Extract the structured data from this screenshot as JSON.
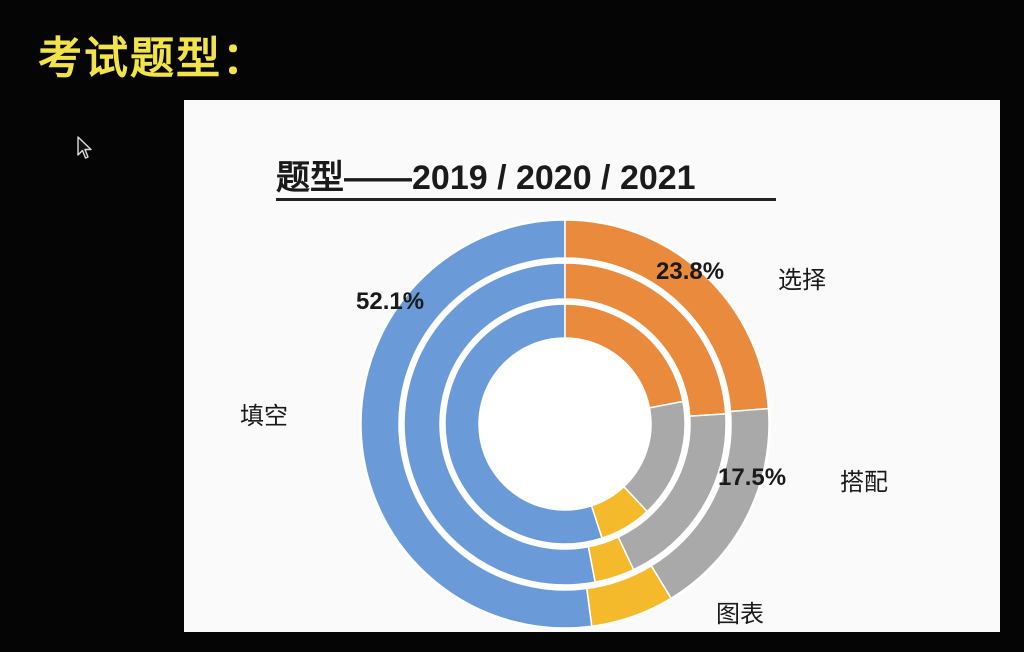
{
  "heading": "考试题型：",
  "chart_data": {
    "type": "pie",
    "variant": "nested-donut",
    "title": "题型——2019 / 2020 / 2021",
    "categories": [
      "填空",
      "选择",
      "搭配",
      "图表"
    ],
    "colors": [
      "#6a9bd8",
      "#e98a3d",
      "#a9a9a9",
      "#f5b92c"
    ],
    "rings": [
      {
        "values": [
          52.1,
          23.8,
          17.5,
          6.6
        ]
      },
      {
        "values": [
          53.0,
          24.0,
          19.0,
          4.0
        ]
      },
      {
        "values": [
          55.0,
          22.0,
          16.0,
          7.0
        ]
      }
    ],
    "data_labels": [
      "52.1%",
      "23.8%",
      "17.5%"
    ],
    "category_labels": [
      "填空",
      "选择",
      "搭配",
      "图表"
    ],
    "legend": "none"
  }
}
